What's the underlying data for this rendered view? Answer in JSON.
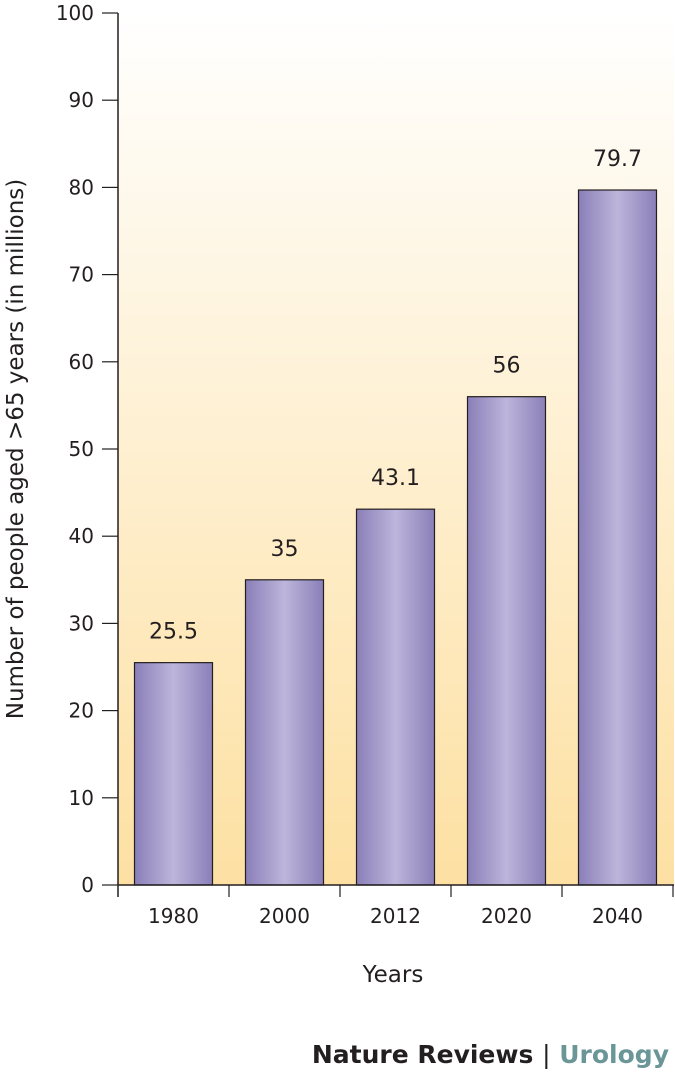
{
  "chart_data": {
    "type": "bar",
    "categories": [
      "1980",
      "2000",
      "2012",
      "2020",
      "2040"
    ],
    "values": [
      25.5,
      35,
      43.1,
      56,
      79.7
    ],
    "data_labels": [
      "25.5",
      "35",
      "43.1",
      "56",
      "79.7"
    ],
    "xlabel": "Years",
    "ylabel": "Number of people aged >65 years (in millions)",
    "ylim": [
      0,
      100
    ],
    "yticks": [
      0,
      10,
      20,
      30,
      40,
      50,
      60,
      70,
      80,
      90,
      100
    ],
    "grid": false,
    "legend": "none",
    "colors": {
      "bar_edge": "#8a7fb8",
      "bar_center": "#bdb5db",
      "bar_outline": "#231f20",
      "background_top": "#ffffff",
      "background_bottom": "#fde0a2"
    }
  },
  "credit": {
    "publisher": "Nature Reviews",
    "separator": "|",
    "journal": "Urology"
  }
}
